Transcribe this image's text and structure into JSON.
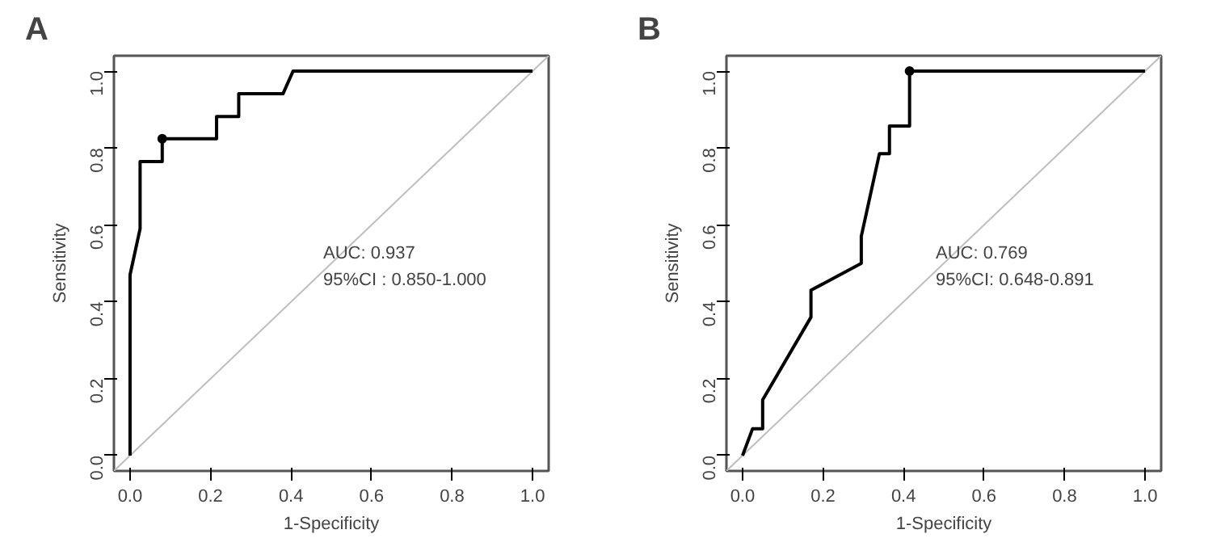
{
  "chart_data": [
    {
      "type": "line",
      "title": "A",
      "xlabel": "1-Specificity",
      "ylabel": "Sensitivity",
      "xlim": [
        -0.04,
        1.04
      ],
      "ylim": [
        -0.04,
        1.04
      ],
      "xticks": [
        {
          "value": 0,
          "label": "0.0"
        },
        {
          "value": 0.2,
          "label": "0.2"
        },
        {
          "value": 0.4,
          "label": "0.4"
        },
        {
          "value": 0.6,
          "label": "0.6"
        },
        {
          "value": 0.8,
          "label": "0.8"
        },
        {
          "value": 1,
          "label": "1.0"
        }
      ],
      "yticks": [
        {
          "value": 0,
          "label": "0.0"
        },
        {
          "value": 0.2,
          "label": "0.2"
        },
        {
          "value": 0.4,
          "label": "0.4"
        },
        {
          "value": 0.6,
          "label": "0.6"
        },
        {
          "value": 0.8,
          "label": "0.8"
        },
        {
          "value": 1,
          "label": "1.0"
        }
      ],
      "grid": false,
      "line_style": "solid",
      "annotations": [
        "AUC: 0.937",
        "95%CI : 0.850-1.000"
      ],
      "series": [
        {
          "color": "#bebebe",
          "x": [
            -0.04,
            1.04
          ],
          "values": [
            -0.04,
            1.04
          ]
        },
        {
          "color": "#000000",
          "x": [
            0,
            0,
            0.025,
            0.025,
            0.08,
            0.08,
            0.215,
            0.215,
            0.27,
            0.27,
            0.38,
            0.405,
            1
          ],
          "values": [
            0,
            0.47,
            0.59,
            0.765,
            0.765,
            0.824,
            0.824,
            0.882,
            0.882,
            0.941,
            0.941,
            1,
            1
          ]
        },
        {
          "type": "scatter",
          "marker": "circle",
          "color": "#000000",
          "x": [
            0.08
          ],
          "values": [
            0.824
          ]
        }
      ]
    },
    {
      "type": "line",
      "title": "B",
      "xlabel": "1-Specificity",
      "ylabel": "Sensitivity",
      "xlim": [
        -0.04,
        1.04
      ],
      "ylim": [
        -0.04,
        1.04
      ],
      "xticks": [
        {
          "value": 0,
          "label": "0.0"
        },
        {
          "value": 0.2,
          "label": "0.2"
        },
        {
          "value": 0.4,
          "label": "0.4"
        },
        {
          "value": 0.6,
          "label": "0.6"
        },
        {
          "value": 0.8,
          "label": "0.8"
        },
        {
          "value": 1,
          "label": "1.0"
        }
      ],
      "yticks": [
        {
          "value": 0,
          "label": "0.0"
        },
        {
          "value": 0.2,
          "label": "0.2"
        },
        {
          "value": 0.4,
          "label": "0.4"
        },
        {
          "value": 0.6,
          "label": "0.6"
        },
        {
          "value": 0.8,
          "label": "0.8"
        },
        {
          "value": 1,
          "label": "1.0"
        }
      ],
      "grid": false,
      "line_style": "solid",
      "annotations": [
        "AUC: 0.769",
        "95%CI: 0.648-0.891"
      ],
      "series": [
        {
          "color": "#bebebe",
          "x": [
            -0.04,
            1.04
          ],
          "values": [
            -0.04,
            1.04
          ]
        },
        {
          "color": "#000000",
          "x": [
            0,
            0.025,
            0.05,
            0.05,
            0.17,
            0.17,
            0.295,
            0.295,
            0.34,
            0.365,
            0.365,
            0.415,
            0.415,
            1
          ],
          "values": [
            0,
            0.07,
            0.07,
            0.145,
            0.36,
            0.43,
            0.5,
            0.57,
            0.785,
            0.785,
            0.857,
            0.857,
            1,
            1
          ]
        },
        {
          "type": "scatter",
          "marker": "circle",
          "color": "#000000",
          "x": [
            0.415
          ],
          "values": [
            1
          ]
        }
      ]
    }
  ]
}
